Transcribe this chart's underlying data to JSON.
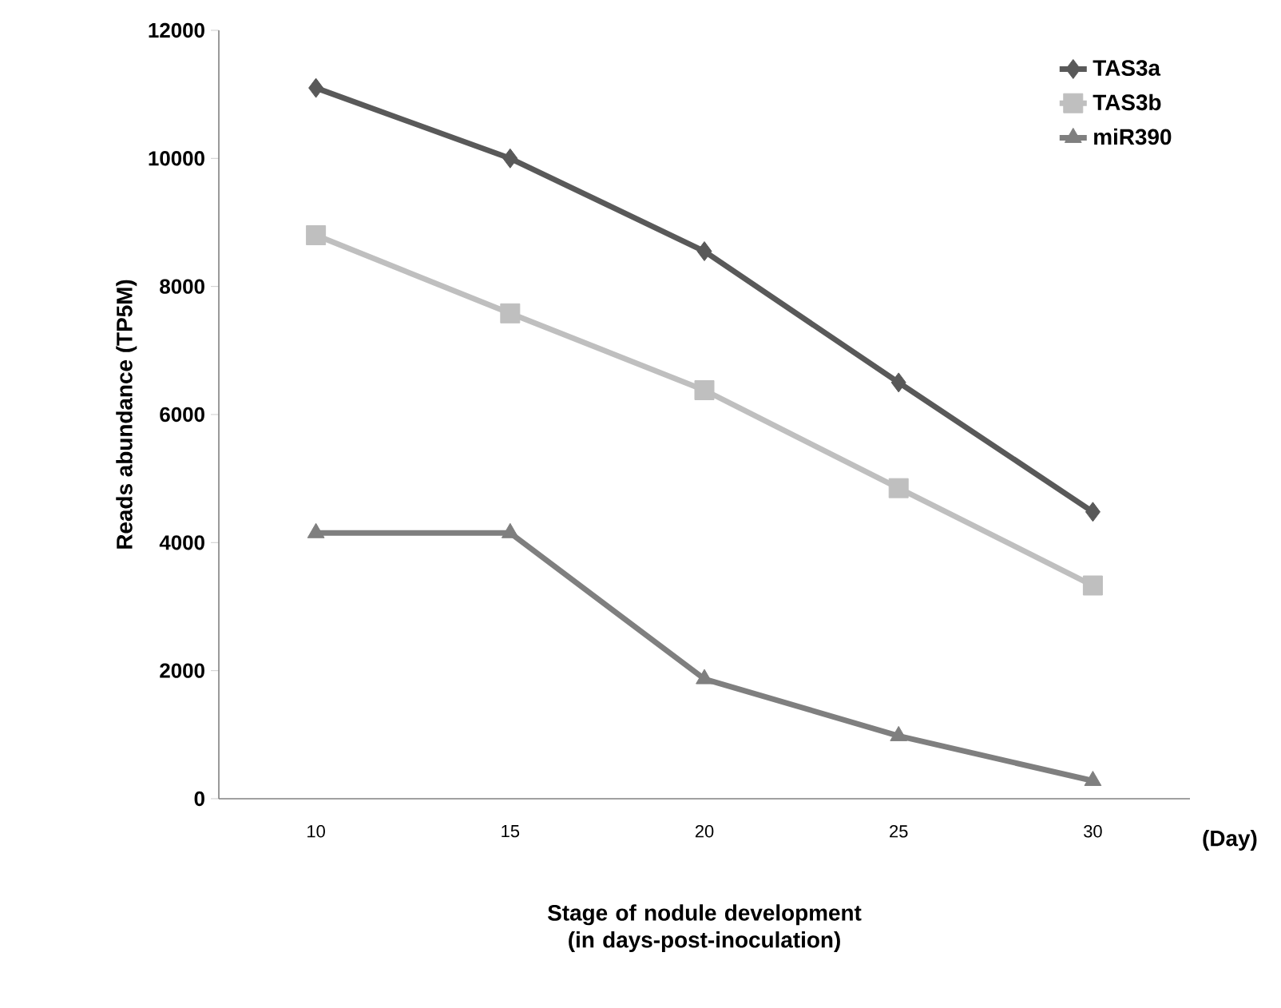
{
  "chart_data": {
    "type": "line",
    "ylabel": "Reads abundance (TP5M)",
    "xlabel": "Stage of nodule development (in days-post-inoculation)",
    "categories": [
      "10",
      "15",
      "20",
      "25",
      "30"
    ],
    "series": [
      {
        "name": "TAS3a",
        "color": "#595959",
        "marker": "diamond",
        "values": [
          11100,
          10000,
          8550,
          6500,
          4480
        ]
      },
      {
        "name": "TAS3b",
        "color": "#bfbfbf",
        "marker": "square",
        "values": [
          8800,
          7580,
          6380,
          4850,
          3330
        ]
      },
      {
        "name": "miR390",
        "color": "#7f7f7f",
        "marker": "triangle",
        "values": [
          4150,
          4150,
          1870,
          980,
          280
        ]
      }
    ],
    "ylim": [
      0,
      12000
    ],
    "yticks": [
      0,
      2000,
      4000,
      6000,
      8000,
      10000,
      12000
    ],
    "grid": false,
    "legend": "top right",
    "line_style": "solid",
    "annotations": [
      "(Day)"
    ]
  }
}
